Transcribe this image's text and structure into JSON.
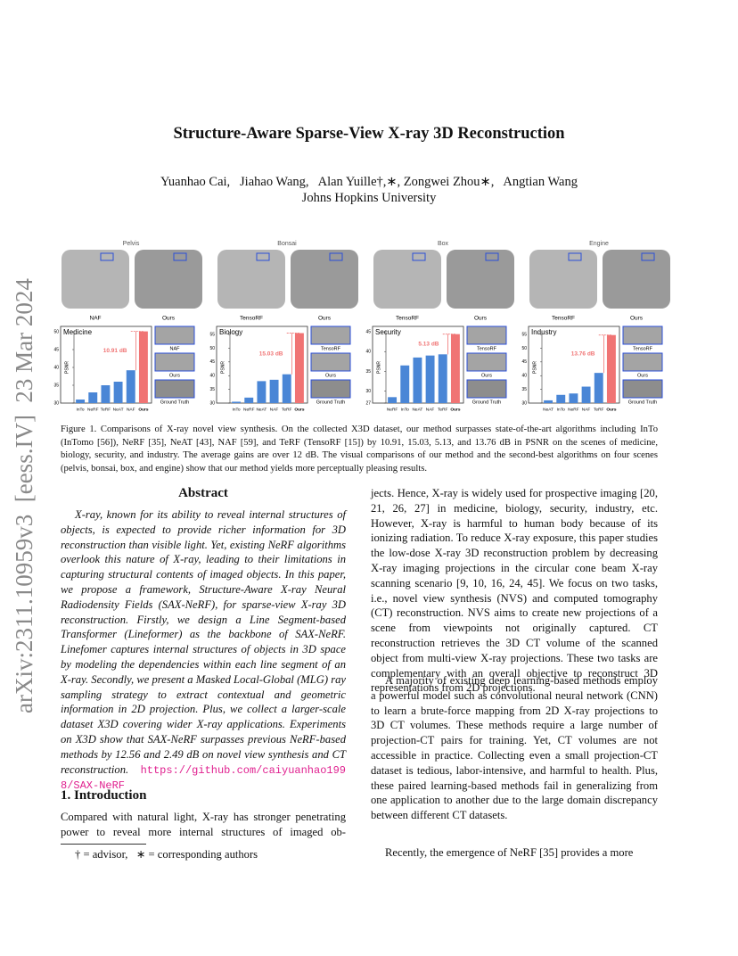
{
  "sidebar": "arXiv:2311.10959v3  [eess.IV]  23 Mar 2024",
  "header": {
    "title": "Structure-Aware Sparse-View X-ray 3D Reconstruction",
    "authors": "Yuanhao Cai,   Jiahao Wang,   Alan Yuille†,∗, Zongwei Zhou∗,   Angtian Wang",
    "affiliation": "Johns Hopkins University"
  },
  "figure": {
    "panels": [
      {
        "top_label": "Pelvis",
        "image_labels": [
          "NAF",
          "Ours"
        ],
        "thumb_labels": [
          "NAF",
          "Ours",
          "Ground Truth"
        ],
        "chart": {
          "type": "bar",
          "title": "Medicine",
          "ylabel": "PSNR",
          "categories": [
            "InTo",
            "NeRF",
            "TeRF",
            "NeAT",
            "NAF",
            "Ours"
          ],
          "values": [
            31,
            33,
            35,
            36,
            39.2,
            50.1
          ],
          "color": "#4a86d6",
          "highlight_color": "#f07474",
          "gain_label": "10.91 dB",
          "ylim": [
            30,
            50
          ],
          "yticks": [
            30,
            35,
            40,
            45,
            50
          ]
        }
      },
      {
        "top_label": "Bonsai",
        "image_labels": [
          "TensoRF",
          "Ours"
        ],
        "thumb_labels": [
          "TensoRF",
          "Ours",
          "Ground Truth"
        ],
        "chart": {
          "type": "bar",
          "title": "Biology",
          "ylabel": "PSNR",
          "categories": [
            "InTo",
            "NeRF",
            "NeAT",
            "NAF",
            "TeRF",
            "Ours"
          ],
          "values": [
            30.5,
            32,
            38,
            38.5,
            40.5,
            55.5
          ],
          "color": "#4a86d6",
          "highlight_color": "#f07474",
          "gain_label": "15.03 dB",
          "ylim": [
            30,
            56
          ],
          "yticks": [
            30,
            35,
            40,
            45,
            50,
            55
          ]
        }
      },
      {
        "top_label": "Box",
        "image_labels": [
          "TensoRF",
          "Ours"
        ],
        "thumb_labels": [
          "TensoRF",
          "Ours",
          "Ground Truth"
        ],
        "chart": {
          "type": "bar",
          "title": "Security",
          "ylabel": "PSNR",
          "categories": [
            "NeRF",
            "InTo",
            "NeAT",
            "NAF",
            "TeRF",
            "Ours"
          ],
          "values": [
            28.5,
            36.5,
            38.5,
            39,
            39.3,
            44.4
          ],
          "color": "#4a86d6",
          "highlight_color": "#f07474",
          "gain_label": "5.13 dB",
          "ylim": [
            27,
            45
          ],
          "yticks": [
            27,
            30,
            35,
            40,
            45
          ]
        }
      },
      {
        "top_label": "Engine",
        "image_labels": [
          "TensoRF",
          "Ours"
        ],
        "thumb_labels": [
          "TensoRF",
          "Ours",
          "Ground Truth"
        ],
        "chart": {
          "type": "bar",
          "title": "Industry",
          "ylabel": "PSNR",
          "categories": [
            "NeAT",
            "InTo",
            "NeRF",
            "NAF",
            "TeRF",
            "Ours"
          ],
          "values": [
            31,
            33,
            33.5,
            36,
            41,
            54.8
          ],
          "color": "#4a86d6",
          "highlight_color": "#f07474",
          "gain_label": "13.76 dB",
          "ylim": [
            30,
            56
          ],
          "yticks": [
            30,
            35,
            40,
            45,
            50,
            55
          ]
        }
      }
    ],
    "caption": "Figure 1.  Comparisons of X-ray novel view synthesis.  On the collected X3D dataset, our method surpasses state-of-the-art algorithms including InTo (InTomo [56]), NeRF [35], NeAT [43], NAF [59], and TeRF (TensoRF [15]) by 10.91, 15.03, 5.13, and 13.76 dB in PSNR on the scenes of medicine, biology, security, and industry. The average gains are over 12 dB. The visual comparisons of our method and the second-best algorithms on four scenes (pelvis, bonsai, box, and engine) show that our method yields more perceptually pleasing results."
  },
  "abstract": {
    "heading": "Abstract",
    "text": "X-ray, known for its ability to reveal internal structures of objects, is expected to provide richer information for 3D reconstruction than visible light. Yet, existing NeRF algorithms overlook this nature of X-ray, leading to their limitations in capturing structural contents of imaged objects. In this paper, we propose a framework, Structure-Aware X-ray Neural Radiodensity Fields (SAX-NeRF), for sparse-view X-ray 3D reconstruction. Firstly, we design a Line Segment-based Transformer (Lineformer) as the backbone of SAX-NeRF. Linefomer captures internal structures of objects in 3D space by modeling the dependencies within each line segment of an X-ray. Secondly, we present a Masked Local-Global (MLG) ray sampling strategy to extract contextual and geometric information in 2D projection. Plus, we collect a larger-scale dataset X3D covering wider X-ray applications. Experiments on X3D show that SAX-NeRF surpasses previous NeRF-based methods by 12.56 and 2.49 dB on novel view synthesis and CT reconstruction.",
    "link": "https://github.com/caiyuanhao1998/SAX-NeRF"
  },
  "introduction": {
    "heading": "1. Introduction",
    "left": "Compared with natural light, X-ray has stronger penetrating power to reveal more internal structures of imaged ob-",
    "right": [
      "jects. Hence, X-ray is widely used for prospective imaging [20, 21, 26, 27] in medicine, biology, security, industry, etc. However, X-ray is harmful to human body because of its ionizing radiation. To reduce X-ray exposure, this paper studies the low-dose X-ray 3D reconstruction problem by decreasing X-ray imaging projections in the circular cone beam X-ray scanning scenario [9, 10, 16, 24, 45]. We focus on two tasks, i.e., novel view synthesis (NVS) and computed tomography (CT) reconstruction. NVS aims to create new projections of a scene from viewpoints not originally captured. CT reconstruction retrieves the 3D CT volume of the scanned object from multi-view X-ray projections. These two tasks are complementary with an overall objective to reconstruct 3D representations from 2D projections.",
      "A majority of existing deep learning-based methods employ a powerful model such as convolutional neural network (CNN) to learn a brute-force mapping from 2D X-ray projections to 3D CT volumes. These methods require a large number of projection-CT pairs for training. Yet, CT volumes are not accessible in practice. Collecting even a small projection-CT dataset is tedious, labor-intensive, and harmful to health. Plus, these paired learning-based methods fail in generalizing from one application to another due to the large domain discrepancy between different CT datasets.",
      "Recently, the emergence of NeRF [35] provides a more"
    ]
  },
  "footnote": "† = advisor,   ∗ = corresponding authors"
}
